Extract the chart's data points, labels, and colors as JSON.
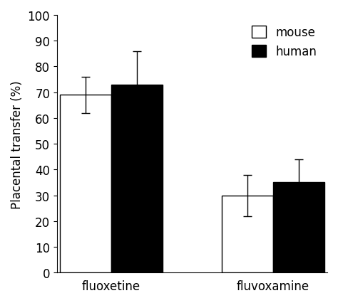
{
  "groups": [
    "fluoxetine",
    "fluvoxamine"
  ],
  "mouse_values": [
    69,
    30
  ],
  "human_values": [
    73,
    35
  ],
  "mouse_errors": [
    7,
    8
  ],
  "human_errors": [
    13,
    9
  ],
  "mouse_color": "#ffffff",
  "human_color": "#000000",
  "bar_edgecolor": "#000000",
  "ylabel": "Placental transfer (%)",
  "ylim": [
    0,
    100
  ],
  "yticks": [
    0,
    10,
    20,
    30,
    40,
    50,
    60,
    70,
    80,
    90,
    100
  ],
  "legend_labels": [
    "mouse",
    "human"
  ],
  "bar_width": 0.38,
  "capsize": 4,
  "fontsize": 12,
  "legend_fontsize": 12,
  "group_centers": [
    0.5,
    1.7
  ]
}
